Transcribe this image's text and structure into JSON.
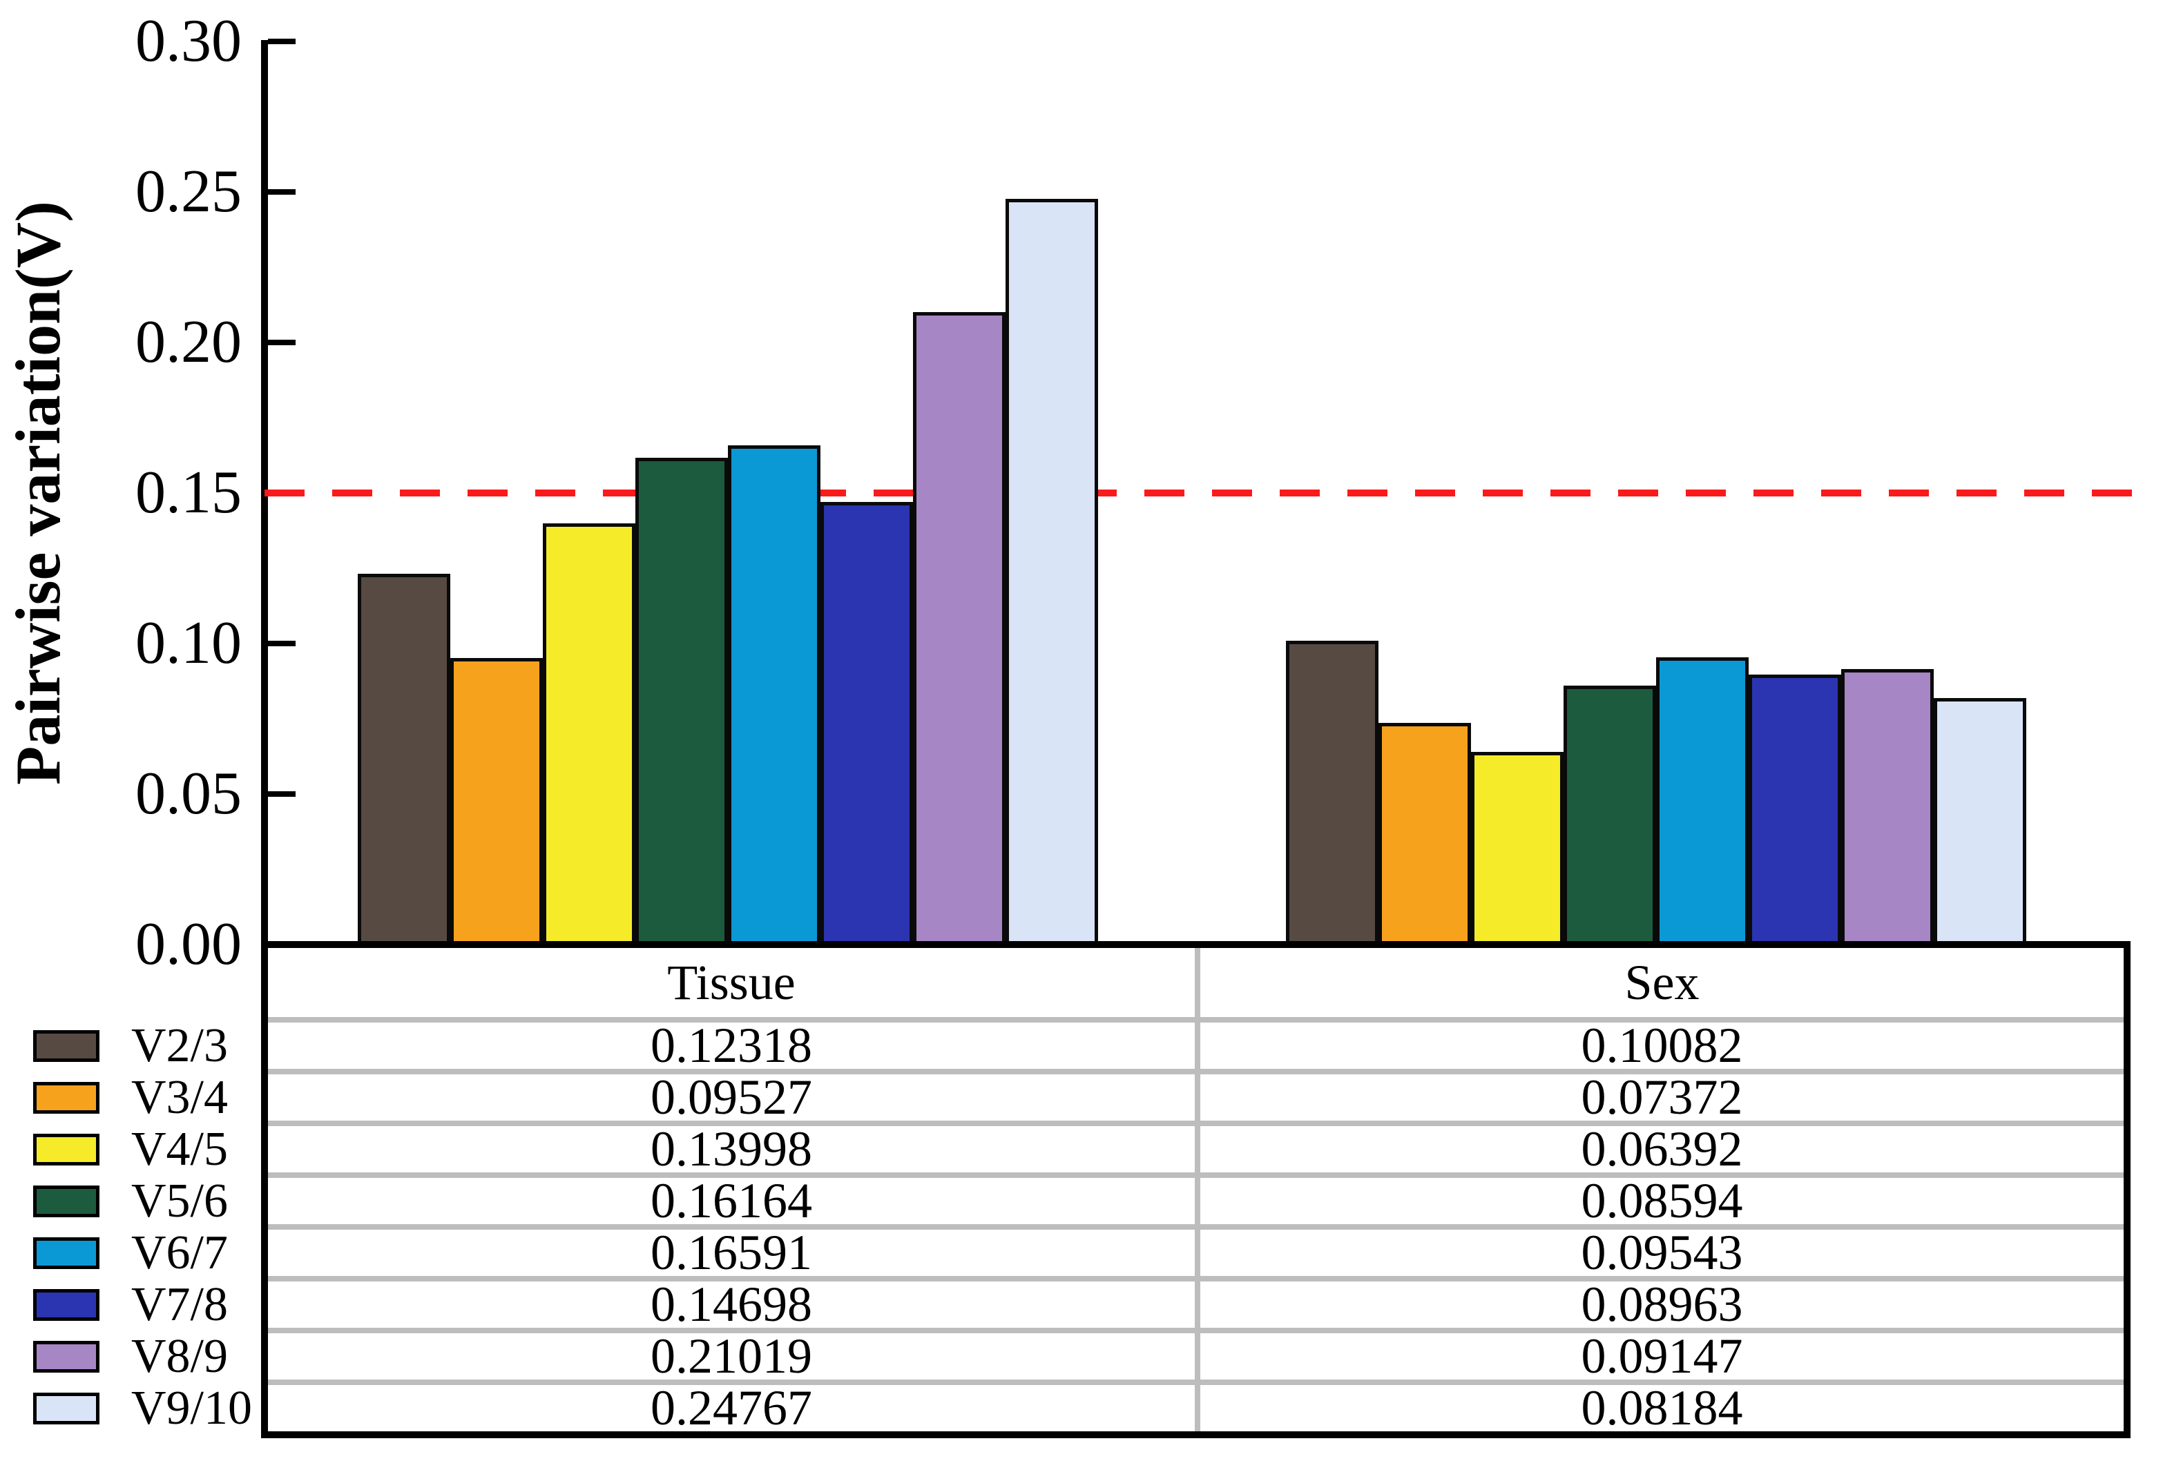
{
  "chart_data": {
    "type": "bar",
    "title": "",
    "ylabel": "Pairwise variation(V)",
    "xlabel": "",
    "categories": [
      "Tissue",
      "Sex"
    ],
    "series": [
      {
        "name": "V2/3",
        "color": "#564a42",
        "values": [
          0.12318,
          0.10082
        ]
      },
      {
        "name": "V3/4",
        "color": "#f7a21d",
        "values": [
          0.09527,
          0.07372
        ]
      },
      {
        "name": "V4/5",
        "color": "#f6eb28",
        "values": [
          0.13998,
          0.06392
        ]
      },
      {
        "name": "V5/6",
        "color": "#1d5b3f",
        "values": [
          0.16164,
          0.08594
        ]
      },
      {
        "name": "V6/7",
        "color": "#0b99d5",
        "values": [
          0.16591,
          0.09543
        ]
      },
      {
        "name": "V7/8",
        "color": "#2b35b2",
        "values": [
          0.14698,
          0.08963
        ]
      },
      {
        "name": "V8/9",
        "color": "#a686c5",
        "values": [
          0.21019,
          0.09147
        ]
      },
      {
        "name": "V9/10",
        "color": "#d9e5f7",
        "values": [
          0.24767,
          0.08184
        ]
      }
    ],
    "y_ticks": [
      "0.30",
      "0.25",
      "0.20",
      "0.15",
      "0.10",
      "0.05",
      "0.00"
    ],
    "ylim": [
      0,
      0.3
    ],
    "grid": false,
    "legend_position": "bottom-left",
    "threshold": {
      "value": 0.15,
      "color": "#fb1a1a",
      "style": "dashed"
    },
    "value_table": {
      "headers": [
        "Tissue",
        "Sex"
      ],
      "columns": {
        "Tissue": [
          "0.12318",
          "0.09527",
          "0.13998",
          "0.16164",
          "0.16591",
          "0.14698",
          "0.21019",
          "0.24767"
        ],
        "Sex": [
          "0.10082",
          "0.07372",
          "0.06392",
          "0.08594",
          "0.09543",
          "0.08963",
          "0.09147",
          "0.08184"
        ]
      }
    }
  }
}
